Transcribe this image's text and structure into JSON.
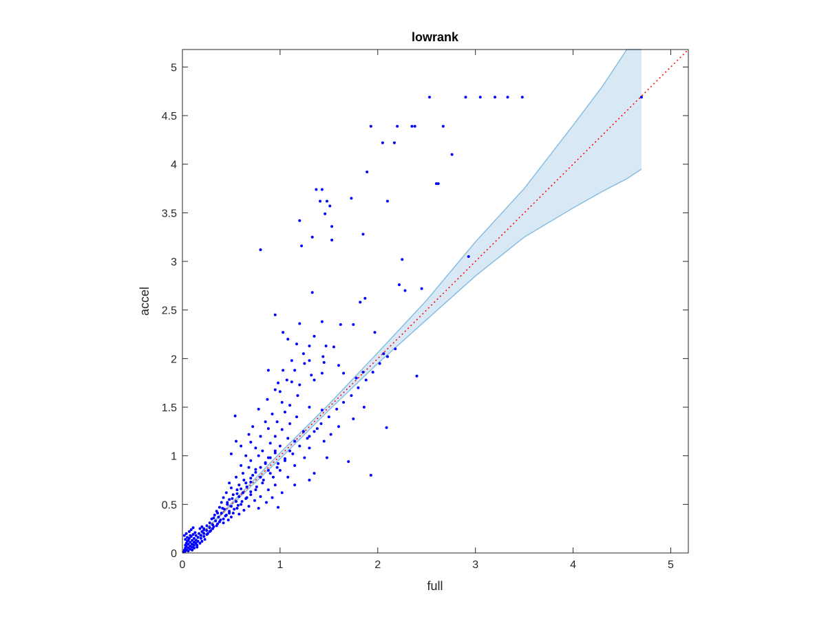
{
  "chart_data": {
    "type": "scatter",
    "title": "lowrank",
    "xlabel": "full",
    "ylabel": "accel",
    "xlim": [
      0,
      5.18
    ],
    "ylim": [
      0,
      5.18
    ],
    "xticks": [
      "0",
      "1",
      "2",
      "3",
      "4",
      "5"
    ],
    "yticks": [
      "0",
      "0.5",
      "1",
      "1.5",
      "2",
      "2.5",
      "3",
      "3.5",
      "4",
      "4.5",
      "5"
    ],
    "grid": false,
    "colors": {
      "points": "#0000ff",
      "band_fill": "#d9e8f5",
      "band_edge": "#87bde2",
      "reference_line": "#ff0000",
      "axes": "#262626"
    },
    "reference_line": {
      "x": [
        0,
        5.18
      ],
      "y": [
        0,
        5.18
      ],
      "style": "dotted"
    },
    "band": {
      "x": [
        0,
        0.5,
        1.0,
        1.5,
        2.0,
        2.5,
        3.0,
        3.5,
        4.0,
        4.3,
        4.55,
        4.7
      ],
      "upper": [
        0,
        0.51,
        1.03,
        1.53,
        2.06,
        2.6,
        3.2,
        3.75,
        4.4,
        4.8,
        5.18,
        5.18
      ],
      "lower": [
        0,
        0.49,
        0.97,
        1.47,
        1.95,
        2.4,
        2.85,
        3.25,
        3.55,
        3.72,
        3.85,
        3.95
      ]
    },
    "series": [
      {
        "points": [
          [
            2.53,
            4.69
          ],
          [
            2.9,
            4.69
          ],
          [
            3.05,
            4.69
          ],
          [
            3.2,
            4.69
          ],
          [
            3.33,
            4.69
          ],
          [
            3.48,
            4.69
          ],
          [
            4.7,
            4.69
          ],
          [
            1.93,
            4.39
          ],
          [
            2.2,
            4.39
          ],
          [
            2.35,
            4.39
          ],
          [
            2.38,
            4.39
          ],
          [
            2.67,
            4.39
          ],
          [
            2.05,
            4.22
          ],
          [
            2.17,
            4.22
          ],
          [
            2.76,
            4.1
          ],
          [
            1.89,
            3.92
          ],
          [
            2.6,
            3.8
          ],
          [
            2.62,
            3.8
          ],
          [
            1.37,
            3.74
          ],
          [
            1.43,
            3.74
          ],
          [
            1.73,
            3.65
          ],
          [
            1.41,
            3.62
          ],
          [
            1.48,
            3.62
          ],
          [
            2.1,
            3.62
          ],
          [
            1.51,
            3.57
          ],
          [
            1.46,
            3.49
          ],
          [
            1.2,
            3.42
          ],
          [
            1.53,
            3.36
          ],
          [
            1.85,
            3.28
          ],
          [
            1.33,
            3.25
          ],
          [
            1.53,
            3.22
          ],
          [
            1.22,
            3.16
          ],
          [
            0.8,
            3.12
          ],
          [
            2.93,
            3.05
          ],
          [
            2.25,
            3.02
          ],
          [
            2.22,
            2.76
          ],
          [
            2.45,
            2.72
          ],
          [
            2.28,
            2.7
          ],
          [
            1.33,
            2.68
          ],
          [
            1.87,
            2.62
          ],
          [
            1.82,
            2.58
          ],
          [
            0.95,
            2.45
          ],
          [
            1.43,
            2.38
          ],
          [
            1.2,
            2.36
          ],
          [
            1.62,
            2.35
          ],
          [
            1.75,
            2.35
          ],
          [
            1.03,
            2.27
          ],
          [
            1.97,
            2.27
          ],
          [
            1.35,
            2.23
          ],
          [
            1.08,
            2.2
          ],
          [
            1.17,
            2.15
          ],
          [
            1.3,
            2.13
          ],
          [
            1.47,
            2.13
          ],
          [
            1.55,
            2.12
          ],
          [
            1.24,
            2.05
          ],
          [
            2.06,
            2.05
          ],
          [
            1.44,
            2.02
          ],
          [
            1.12,
            1.98
          ],
          [
            1.3,
            1.98
          ],
          [
            1.45,
            1.96
          ],
          [
            1.25,
            1.95
          ],
          [
            1.6,
            1.93
          ],
          [
            1.85,
            1.86
          ],
          [
            0.88,
            1.88
          ],
          [
            1.03,
            1.88
          ],
          [
            1.15,
            1.88
          ],
          [
            1.43,
            1.85
          ],
          [
            1.65,
            1.85
          ],
          [
            1.32,
            1.83
          ],
          [
            2.4,
            1.82
          ],
          [
            1.78,
            1.8
          ],
          [
            1.07,
            1.78
          ],
          [
            1.12,
            1.76
          ],
          [
            0.98,
            1.75
          ],
          [
            1.2,
            1.73
          ],
          [
            1.35,
            1.78
          ],
          [
            0.95,
            1.68
          ],
          [
            1.0,
            1.66
          ],
          [
            1.18,
            1.62
          ],
          [
            0.87,
            1.58
          ],
          [
            1.02,
            1.55
          ],
          [
            1.1,
            1.52
          ],
          [
            1.3,
            1.5
          ],
          [
            1.43,
            1.47
          ],
          [
            1.86,
            1.5
          ],
          [
            0.78,
            1.48
          ],
          [
            0.92,
            1.43
          ],
          [
            1.05,
            1.45
          ],
          [
            1.17,
            1.4
          ],
          [
            0.54,
            1.41
          ],
          [
            0.85,
            1.35
          ],
          [
            0.97,
            1.35
          ],
          [
            1.1,
            1.33
          ],
          [
            1.75,
            1.38
          ],
          [
            0.72,
            1.3
          ],
          [
            0.88,
            1.28
          ],
          [
            1.02,
            1.27
          ],
          [
            1.24,
            1.25
          ],
          [
            1.38,
            1.28
          ],
          [
            1.6,
            1.3
          ],
          [
            2.09,
            1.29
          ],
          [
            0.68,
            1.22
          ],
          [
            0.8,
            1.2
          ],
          [
            0.95,
            1.2
          ],
          [
            1.08,
            1.18
          ],
          [
            1.3,
            1.2
          ],
          [
            1.52,
            1.22
          ],
          [
            0.55,
            1.15
          ],
          [
            0.7,
            1.14
          ],
          [
            0.9,
            1.13
          ],
          [
            1.15,
            1.15
          ],
          [
            1.45,
            1.15
          ],
          [
            0.6,
            1.1
          ],
          [
            0.75,
            1.08
          ],
          [
            0.82,
            1.05
          ],
          [
            0.95,
            1.05
          ],
          [
            1.1,
            1.05
          ],
          [
            1.3,
            1.08
          ],
          [
            0.5,
            1.02
          ],
          [
            0.65,
            1.0
          ],
          [
            0.78,
            1.0
          ],
          [
            0.88,
            0.98
          ],
          [
            1.05,
            0.97
          ],
          [
            1.25,
            0.98
          ],
          [
            1.48,
            0.98
          ],
          [
            1.7,
            0.94
          ],
          [
            0.7,
            0.95
          ],
          [
            0.85,
            0.92
          ],
          [
            0.98,
            0.92
          ],
          [
            1.15,
            0.9
          ],
          [
            0.6,
            0.9
          ],
          [
            0.68,
            0.88
          ],
          [
            0.75,
            0.86
          ],
          [
            0.88,
            0.85
          ],
          [
            1.0,
            0.85
          ],
          [
            1.35,
            0.82
          ],
          [
            0.62,
            0.82
          ],
          [
            0.72,
            0.8
          ],
          [
            0.8,
            0.78
          ],
          [
            0.93,
            0.78
          ],
          [
            1.08,
            0.78
          ],
          [
            1.3,
            0.75
          ],
          [
            1.93,
            0.8
          ],
          [
            0.55,
            0.78
          ],
          [
            0.63,
            0.75
          ],
          [
            0.7,
            0.73
          ],
          [
            0.82,
            0.72
          ],
          [
            0.95,
            0.7
          ],
          [
            1.15,
            0.7
          ],
          [
            0.48,
            0.72
          ],
          [
            0.58,
            0.7
          ],
          [
            0.66,
            0.68
          ],
          [
            0.75,
            0.65
          ],
          [
            0.88,
            0.65
          ],
          [
            1.02,
            0.62
          ],
          [
            0.5,
            0.67
          ],
          [
            0.56,
            0.65
          ],
          [
            0.62,
            0.62
          ],
          [
            0.7,
            0.6
          ],
          [
            0.8,
            0.58
          ],
          [
            0.92,
            0.57
          ],
          [
            0.45,
            0.62
          ],
          [
            0.52,
            0.6
          ],
          [
            0.58,
            0.58
          ],
          [
            0.65,
            0.56
          ],
          [
            0.74,
            0.54
          ],
          [
            0.86,
            0.52
          ],
          [
            0.98,
            0.47
          ],
          [
            0.42,
            0.57
          ],
          [
            0.48,
            0.55
          ],
          [
            0.55,
            0.53
          ],
          [
            0.6,
            0.5
          ],
          [
            0.68,
            0.48
          ],
          [
            0.78,
            0.46
          ],
          [
            0.4,
            0.52
          ],
          [
            0.46,
            0.5
          ],
          [
            0.5,
            0.48
          ],
          [
            0.56,
            0.46
          ],
          [
            0.63,
            0.44
          ],
          [
            0.38,
            0.47
          ],
          [
            0.43,
            0.45
          ],
          [
            0.48,
            0.43
          ],
          [
            0.52,
            0.41
          ],
          [
            0.58,
            0.4
          ],
          [
            0.35,
            0.43
          ],
          [
            0.4,
            0.41
          ],
          [
            0.45,
            0.39
          ],
          [
            0.5,
            0.37
          ],
          [
            0.33,
            0.39
          ],
          [
            0.37,
            0.37
          ],
          [
            0.42,
            0.35
          ],
          [
            0.47,
            0.34
          ],
          [
            0.3,
            0.35
          ],
          [
            0.34,
            0.33
          ],
          [
            0.38,
            0.32
          ],
          [
            0.42,
            0.31
          ],
          [
            0.28,
            0.31
          ],
          [
            0.31,
            0.29
          ],
          [
            0.35,
            0.28
          ],
          [
            0.25,
            0.28
          ],
          [
            0.28,
            0.26
          ],
          [
            0.31,
            0.25
          ],
          [
            0.22,
            0.25
          ],
          [
            0.25,
            0.23
          ],
          [
            0.28,
            0.22
          ],
          [
            0.2,
            0.22
          ],
          [
            0.22,
            0.2
          ],
          [
            0.25,
            0.19
          ],
          [
            0.17,
            0.2
          ],
          [
            0.19,
            0.18
          ],
          [
            0.22,
            0.17
          ],
          [
            0.14,
            0.18
          ],
          [
            0.16,
            0.16
          ],
          [
            0.19,
            0.15
          ],
          [
            0.12,
            0.15
          ],
          [
            0.14,
            0.13
          ],
          [
            0.16,
            0.12
          ],
          [
            0.1,
            0.13
          ],
          [
            0.12,
            0.11
          ],
          [
            0.14,
            0.1
          ],
          [
            0.08,
            0.11
          ],
          [
            0.1,
            0.09
          ],
          [
            0.12,
            0.08
          ],
          [
            0.06,
            0.09
          ],
          [
            0.08,
            0.07
          ],
          [
            0.1,
            0.06
          ],
          [
            0.04,
            0.07
          ],
          [
            0.06,
            0.05
          ],
          [
            0.08,
            0.04
          ],
          [
            0.03,
            0.05
          ],
          [
            0.04,
            0.03
          ],
          [
            0.06,
            0.02
          ],
          [
            0.02,
            0.03
          ],
          [
            0.03,
            0.02
          ],
          [
            0.02,
            0.01
          ],
          [
            0.01,
            0.01
          ],
          [
            0.05,
            0.12
          ],
          [
            0.07,
            0.15
          ],
          [
            0.09,
            0.17
          ],
          [
            0.11,
            0.19
          ],
          [
            0.13,
            0.21
          ],
          [
            0.04,
            0.1
          ],
          [
            0.06,
            0.13
          ],
          [
            0.15,
            0.08
          ],
          [
            0.18,
            0.1
          ],
          [
            0.2,
            0.12
          ],
          [
            0.23,
            0.14
          ],
          [
            0.1,
            0.03
          ],
          [
            0.12,
            0.05
          ],
          [
            0.15,
            0.06
          ],
          [
            0.03,
            0.08
          ],
          [
            0.05,
            0.16
          ],
          [
            0.08,
            0.18
          ],
          [
            0.18,
            0.25
          ],
          [
            0.2,
            0.27
          ],
          [
            0.22,
            0.24
          ],
          [
            0.26,
            0.2
          ],
          [
            0.29,
            0.23
          ],
          [
            0.32,
            0.27
          ],
          [
            0.36,
            0.3
          ],
          [
            0.39,
            0.34
          ],
          [
            0.44,
            0.38
          ],
          [
            0.48,
            0.41
          ],
          [
            0.53,
            0.45
          ],
          [
            0.57,
            0.49
          ],
          [
            0.61,
            0.53
          ],
          [
            0.66,
            0.57
          ],
          [
            0.7,
            0.63
          ],
          [
            0.76,
            0.68
          ],
          [
            0.83,
            0.75
          ],
          [
            0.9,
            0.82
          ],
          [
            0.97,
            0.88
          ],
          [
            1.05,
            0.95
          ],
          [
            1.13,
            1.02
          ],
          [
            1.2,
            1.1
          ],
          [
            1.28,
            1.18
          ],
          [
            1.35,
            1.25
          ],
          [
            1.42,
            1.33
          ],
          [
            1.5,
            1.4
          ],
          [
            1.58,
            1.48
          ],
          [
            1.65,
            1.55
          ],
          [
            1.73,
            1.62
          ],
          [
            1.8,
            1.7
          ],
          [
            1.88,
            1.78
          ],
          [
            1.95,
            1.86
          ],
          [
            2.02,
            1.95
          ],
          [
            2.1,
            2.02
          ],
          [
            2.18,
            2.1
          ],
          [
            0.32,
            0.36
          ],
          [
            0.36,
            0.41
          ],
          [
            0.41,
            0.46
          ],
          [
            0.46,
            0.52
          ],
          [
            0.51,
            0.56
          ],
          [
            0.56,
            0.61
          ],
          [
            0.6,
            0.66
          ],
          [
            0.65,
            0.72
          ],
          [
            0.7,
            0.77
          ],
          [
            0.75,
            0.83
          ],
          [
            0.8,
            0.88
          ],
          [
            0.85,
            0.93
          ],
          [
            0.9,
            0.98
          ],
          [
            0.95,
            1.03
          ],
          [
            1.0,
            1.1
          ],
          [
            0.03,
            0.14
          ],
          [
            0.02,
            0.18
          ],
          [
            0.04,
            0.2
          ],
          [
            0.07,
            0.22
          ],
          [
            0.09,
            0.24
          ],
          [
            0.11,
            0.26
          ]
        ]
      }
    ]
  }
}
